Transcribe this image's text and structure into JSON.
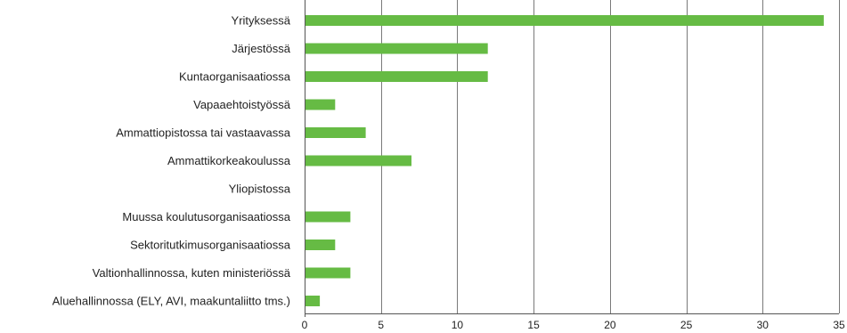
{
  "chart_data": {
    "type": "bar",
    "orientation": "horizontal",
    "title": "",
    "xlabel": "",
    "ylabel": "",
    "xlim": [
      0,
      35
    ],
    "x_ticks": [
      0,
      5,
      10,
      15,
      20,
      25,
      30,
      35
    ],
    "grid": "vertical",
    "legend": "none",
    "bar_color": "#66bb44",
    "categories": [
      "Yrityksessä",
      "Järjestössä",
      "Kuntaorganisaatiossa",
      "Vapaaehtoistyössä",
      "Ammattiopistossa tai vastaavassa",
      "Ammattikorkeakoulussa",
      "Yliopistossa",
      "Muussa koulutusorganisaatiossa",
      "Sektoritutkimusorganisaatiossa",
      "Valtionhallinnossa, kuten ministeriössä",
      "Aluehallinnossa (ELY, AVI, maakuntaliitto tms.)"
    ],
    "values": [
      34,
      12,
      12,
      2,
      4,
      7,
      0,
      3,
      2,
      3,
      1
    ]
  }
}
